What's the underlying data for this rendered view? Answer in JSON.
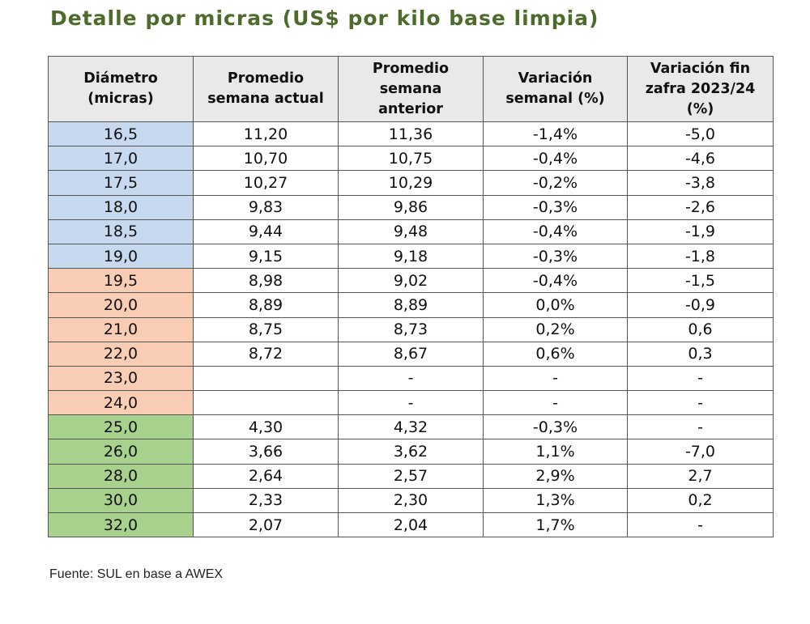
{
  "title": "Detalle por micras (US$ por kilo base limpia)",
  "columns": [
    "Diámetro\n(micras)",
    "Promedio\nsemana actual",
    "Promedio\nsemana\nanterior",
    "Variación\nsemanal (%)",
    "Variación fin\nzafra 2023/24\n(%)"
  ],
  "colors": {
    "blue": "#c6d9ef",
    "orange": "#f8cdb3",
    "green": "#a9d18e",
    "header": "#e9e9ea",
    "title": "#4d6b2a"
  },
  "rows": [
    {
      "group": "blue",
      "cells": [
        "16,5",
        "11,20",
        "11,36",
        "-1,4%",
        "-5,0"
      ]
    },
    {
      "group": "blue",
      "cells": [
        "17,0",
        "10,70",
        "10,75",
        "-0,4%",
        "-4,6"
      ]
    },
    {
      "group": "blue",
      "cells": [
        "17,5",
        "10,27",
        "10,29",
        "-0,2%",
        "-3,8"
      ]
    },
    {
      "group": "blue",
      "cells": [
        "18,0",
        "9,83",
        "9,86",
        "-0,3%",
        "-2,6"
      ]
    },
    {
      "group": "blue",
      "cells": [
        "18,5",
        "9,44",
        "9,48",
        "-0,4%",
        "-1,9"
      ]
    },
    {
      "group": "blue",
      "cells": [
        "19,0",
        "9,15",
        "9,18",
        "-0,3%",
        "-1,8"
      ]
    },
    {
      "group": "orange",
      "cells": [
        "19,5",
        "8,98",
        "9,02",
        "-0,4%",
        "-1,5"
      ]
    },
    {
      "group": "orange",
      "cells": [
        "20,0",
        "8,89",
        "8,89",
        "0,0%",
        "-0,9"
      ]
    },
    {
      "group": "orange",
      "cells": [
        "21,0",
        "8,75",
        "8,73",
        "0,2%",
        "0,6"
      ]
    },
    {
      "group": "orange",
      "cells": [
        "22,0",
        "8,72",
        "8,67",
        "0,6%",
        "0,3"
      ]
    },
    {
      "group": "orange",
      "cells": [
        "23,0",
        "",
        "-",
        "-",
        "-"
      ]
    },
    {
      "group": "orange",
      "cells": [
        "24,0",
        "",
        "-",
        "-",
        "-"
      ]
    },
    {
      "group": "green",
      "cells": [
        "25,0",
        "4,30",
        "4,32",
        "-0,3%",
        "-"
      ]
    },
    {
      "group": "green",
      "cells": [
        "26,0",
        "3,66",
        "3,62",
        "1,1%",
        "-7,0"
      ]
    },
    {
      "group": "green",
      "cells": [
        "28,0",
        "2,64",
        "2,57",
        "2,9%",
        "2,7"
      ]
    },
    {
      "group": "green",
      "cells": [
        "30,0",
        "2,33",
        "2,30",
        "1,3%",
        "0,2"
      ]
    },
    {
      "group": "green",
      "cells": [
        "32,0",
        "2,07",
        "2,04",
        "1,7%",
        "-"
      ]
    }
  ],
  "source": "Fuente: SUL en base a AWEX"
}
